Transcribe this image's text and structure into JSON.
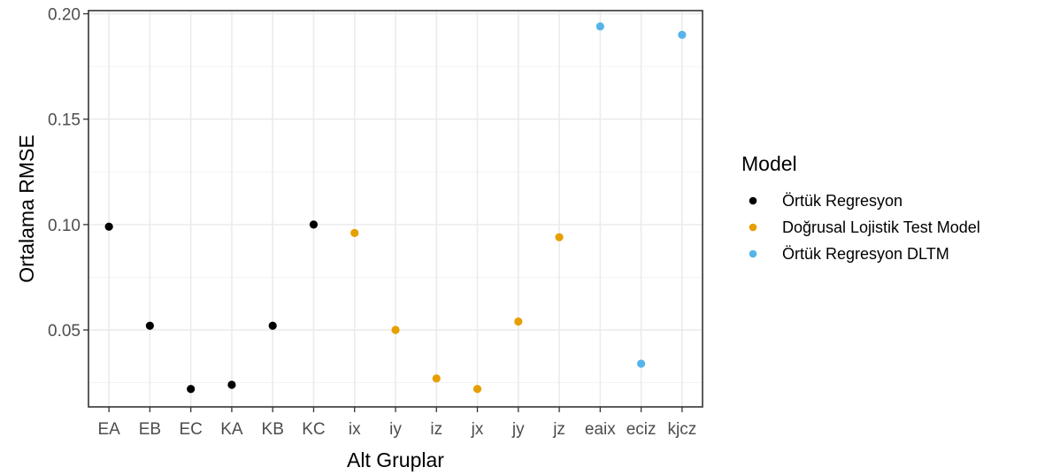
{
  "chart_data": {
    "type": "scatter",
    "xlabel": "Alt Gruplar",
    "ylabel": "Ortalama RMSE",
    "categories": [
      "EA",
      "EB",
      "EC",
      "KA",
      "KB",
      "KC",
      "ix",
      "iy",
      "iz",
      "jx",
      "jy",
      "jz",
      "eaix",
      "eciz",
      "kjcz"
    ],
    "ylim": [
      0.0135,
      0.2015
    ],
    "yticks": [
      0.05,
      0.1,
      0.15,
      0.2
    ],
    "ytick_labels": [
      "0.05",
      "0.10",
      "0.15",
      "0.20"
    ],
    "grid": true,
    "legend": {
      "title": "Model",
      "placement": "right"
    },
    "series": [
      {
        "name": "Örtük Regresyon",
        "color": "#000000",
        "points": [
          {
            "x": "EA",
            "y": 0.099
          },
          {
            "x": "EB",
            "y": 0.052
          },
          {
            "x": "EC",
            "y": 0.022
          },
          {
            "x": "KA",
            "y": 0.024
          },
          {
            "x": "KB",
            "y": 0.052
          },
          {
            "x": "KC",
            "y": 0.1
          }
        ]
      },
      {
        "name": "Doğrusal Lojistik Test Model",
        "color": "#E69F00",
        "points": [
          {
            "x": "ix",
            "y": 0.096
          },
          {
            "x": "iy",
            "y": 0.05
          },
          {
            "x": "iz",
            "y": 0.027
          },
          {
            "x": "jx",
            "y": 0.022
          },
          {
            "x": "jy",
            "y": 0.054
          },
          {
            "x": "jz",
            "y": 0.094
          }
        ]
      },
      {
        "name": "Örtük Regresyon DLTM",
        "color": "#56B4E9",
        "points": [
          {
            "x": "eaix",
            "y": 0.194
          },
          {
            "x": "eciz",
            "y": 0.034
          },
          {
            "x": "kjcz",
            "y": 0.19
          }
        ]
      }
    ]
  }
}
